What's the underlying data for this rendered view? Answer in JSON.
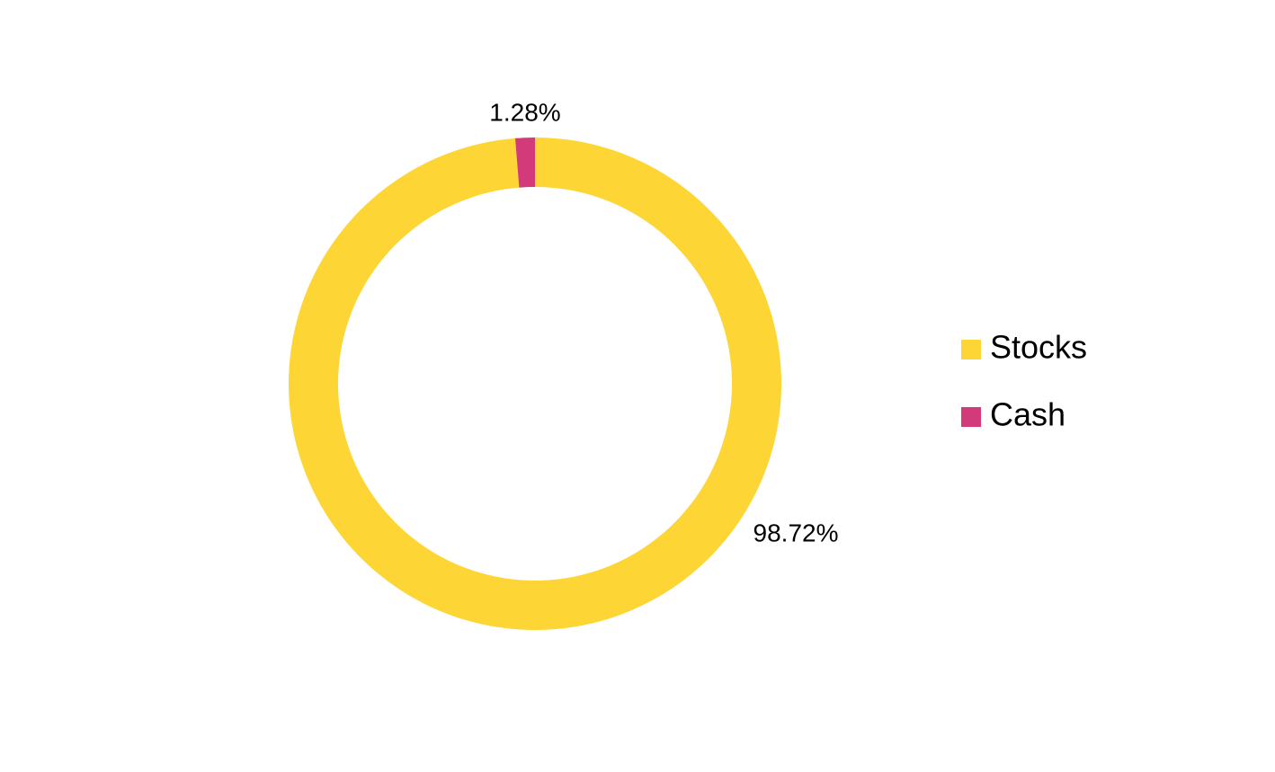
{
  "chart_data": {
    "type": "donut",
    "categories": [
      "Stocks",
      "Cash"
    ],
    "values": [
      98.72,
      1.28
    ],
    "value_labels": [
      "98.72%",
      "1.28%"
    ],
    "colors": [
      "#fdd535",
      "#d23a7a"
    ],
    "legend": "right"
  }
}
